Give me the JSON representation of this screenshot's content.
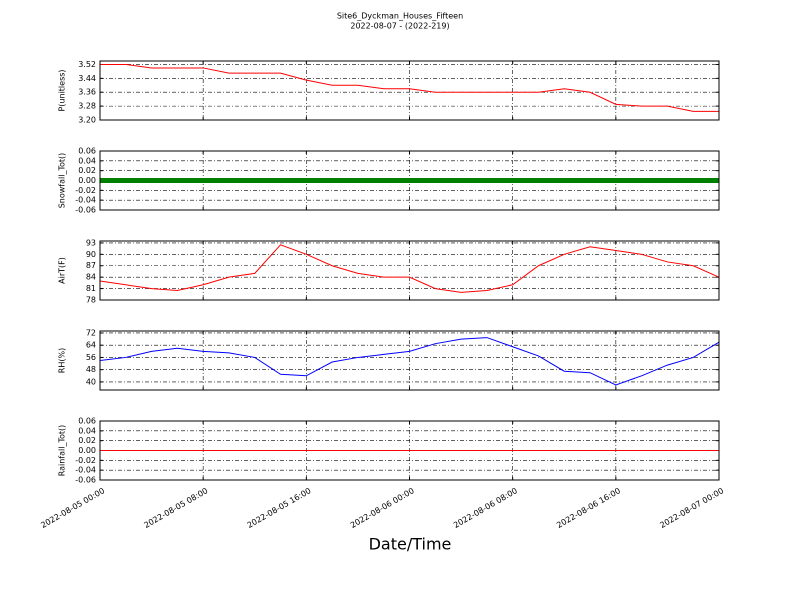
{
  "title": "Site6_Dyckman_Houses_Fifteen",
  "subtitle": "2022-08-07 - (2022-219)",
  "xlabel": "Date/Time",
  "x": [
    "2022-08-05 00:00",
    "2022-08-05 02:00",
    "2022-08-05 04:00",
    "2022-08-05 06:00",
    "2022-08-05 08:00",
    "2022-08-05 10:00",
    "2022-08-05 12:00",
    "2022-08-05 14:00",
    "2022-08-05 16:00",
    "2022-08-05 18:00",
    "2022-08-05 20:00",
    "2022-08-05 22:00",
    "2022-08-06 00:00",
    "2022-08-06 02:00",
    "2022-08-06 04:00",
    "2022-08-06 06:00",
    "2022-08-06 08:00",
    "2022-08-06 10:00",
    "2022-08-06 12:00",
    "2022-08-06 14:00",
    "2022-08-06 16:00",
    "2022-08-06 18:00",
    "2022-08-06 20:00",
    "2022-08-06 22:00",
    "2022-08-07 00:00"
  ],
  "xlim": [
    "2022-08-05 00:00",
    "2022-08-07 00:00"
  ],
  "xticks": [
    "2022-08-05 00:00",
    "2022-08-05 08:00",
    "2022-08-05 16:00",
    "2022-08-06 00:00",
    "2022-08-06 08:00",
    "2022-08-06 16:00",
    "2022-08-07 00:00"
  ],
  "chart_data": [
    {
      "type": "line",
      "ylabel": "P(unitless)",
      "color": "#ff0000",
      "ylim": [
        3.2,
        3.54
      ],
      "yticks": [
        {
          "value": 3.2,
          "label": "3.20"
        },
        3.28,
        3.36,
        3.44,
        3.52
      ],
      "grid": true,
      "values": [
        3.52,
        3.52,
        3.5,
        3.5,
        3.5,
        3.47,
        3.47,
        3.47,
        3.43,
        3.4,
        3.4,
        3.38,
        3.38,
        3.36,
        3.36,
        3.36,
        3.36,
        3.36,
        3.38,
        3.36,
        3.29,
        3.28,
        3.28,
        3.25,
        3.25
      ]
    },
    {
      "type": "line",
      "ylabel": "Snowfall_Tot()",
      "color": "#008000",
      "ylim": [
        -0.06,
        0.06
      ],
      "yticks": [
        -0.06,
        -0.04,
        -0.02,
        {
          "value": 0,
          "label": "0.00"
        },
        0.02,
        0.04,
        0.06
      ],
      "grid": true,
      "values": [
        0,
        0,
        0,
        0,
        0,
        0,
        0,
        0,
        0,
        0,
        0,
        0,
        0,
        0,
        0,
        0,
        0,
        0,
        0,
        0,
        0,
        0,
        0,
        0,
        0
      ]
    },
    {
      "type": "line",
      "ylabel": "AirT(F)",
      "color": "#ff0000",
      "ylim": [
        78,
        93.5
      ],
      "yticks": [
        78,
        81,
        84,
        87,
        90,
        93
      ],
      "grid": true,
      "values": [
        83,
        82,
        81,
        80.5,
        82,
        84,
        85,
        92.5,
        90,
        87,
        85,
        84,
        84,
        81,
        80,
        80.5,
        82,
        87,
        90,
        92,
        91,
        90,
        88,
        87,
        84
      ]
    },
    {
      "type": "line",
      "ylabel": "RH(%)",
      "color": "#0000ff",
      "ylim": [
        34.7,
        73.3
      ],
      "yticks": [
        40,
        48,
        56,
        64,
        72
      ],
      "grid": true,
      "values": [
        54,
        56,
        60,
        62,
        60,
        59,
        56,
        45,
        44,
        53,
        56,
        58,
        60,
        65,
        68,
        69,
        63,
        57,
        47,
        46,
        38,
        44,
        51,
        56,
        66
      ]
    },
    {
      "type": "line",
      "ylabel": "Rainfall_Tot()",
      "color": "#ff0000",
      "ylim": [
        -0.06,
        0.06
      ],
      "yticks": [
        -0.06,
        -0.04,
        -0.02,
        {
          "value": 0,
          "label": "0.00"
        },
        0.02,
        0.04,
        0.06
      ],
      "grid": true,
      "values": [
        0,
        0,
        0,
        0,
        0,
        0,
        0,
        0,
        0,
        0,
        0,
        0,
        0,
        0,
        0,
        0,
        0,
        0,
        0,
        0,
        0,
        0,
        0,
        0,
        0
      ]
    }
  ]
}
